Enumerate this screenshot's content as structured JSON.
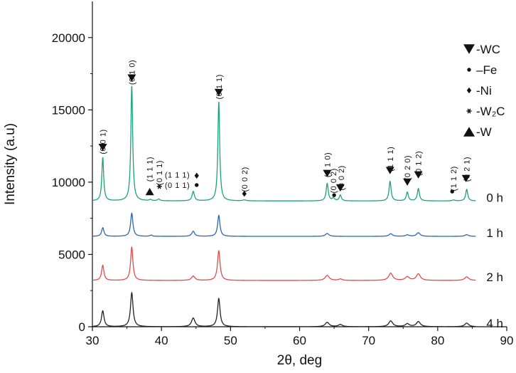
{
  "chart_data": {
    "type": "line",
    "xlabel": "2θ, deg",
    "ylabel": "Intensity (a.u)",
    "xlim": [
      30,
      90
    ],
    "ylim": [
      0,
      22500
    ],
    "x_ticks": [
      30,
      40,
      50,
      60,
      70,
      80,
      90
    ],
    "y_ticks": [
      0,
      5000,
      10000,
      15000,
      20000
    ],
    "grid": false,
    "legend": {
      "placement": "top-right",
      "entries": [
        {
          "marker": "down-triangle",
          "text": "-WC"
        },
        {
          "marker": "dot",
          "text": "–Fe"
        },
        {
          "marker": "diamond",
          "text": "-Ni"
        },
        {
          "marker": "asterisk",
          "text": "-W₂C"
        },
        {
          "marker": "up-triangle",
          "text": "-W"
        }
      ]
    },
    "series": [
      {
        "name": "0 h",
        "color": "#1aa37a",
        "baseline": 8700,
        "peaks": [
          {
            "x": 31.5,
            "height": 3000,
            "width": 0.16
          },
          {
            "x": 35.7,
            "height": 7950,
            "width": 0.16
          },
          {
            "x": 38.4,
            "height": 80,
            "width": 0.2
          },
          {
            "x": 39.6,
            "height": 120,
            "width": 0.2
          },
          {
            "x": 44.6,
            "height": 650,
            "width": 0.2
          },
          {
            "x": 48.3,
            "height": 6850,
            "width": 0.16
          },
          {
            "x": 52.0,
            "height": 60,
            "width": 0.3
          },
          {
            "x": 64.0,
            "height": 1200,
            "width": 0.18
          },
          {
            "x": 64.9,
            "height": 180,
            "width": 0.2
          },
          {
            "x": 65.9,
            "height": 400,
            "width": 0.18
          },
          {
            "x": 73.1,
            "height": 1350,
            "width": 0.18
          },
          {
            "x": 75.6,
            "height": 600,
            "width": 0.18
          },
          {
            "x": 77.2,
            "height": 850,
            "width": 0.18
          },
          {
            "x": 82.3,
            "height": 60,
            "width": 0.25
          },
          {
            "x": 84.2,
            "height": 800,
            "width": 0.18
          }
        ]
      },
      {
        "name": "1 h",
        "color": "#2a66b4",
        "baseline": 6250,
        "peaks": [
          {
            "x": 31.5,
            "height": 600,
            "width": 0.2
          },
          {
            "x": 35.7,
            "height": 1600,
            "width": 0.2
          },
          {
            "x": 38.5,
            "height": 80,
            "width": 0.2
          },
          {
            "x": 44.6,
            "height": 350,
            "width": 0.25
          },
          {
            "x": 48.3,
            "height": 1450,
            "width": 0.2
          },
          {
            "x": 64.0,
            "height": 200,
            "width": 0.3
          },
          {
            "x": 73.2,
            "height": 180,
            "width": 0.3
          },
          {
            "x": 75.6,
            "height": 100,
            "width": 0.3
          },
          {
            "x": 77.2,
            "height": 250,
            "width": 0.3
          },
          {
            "x": 84.2,
            "height": 120,
            "width": 0.3
          }
        ]
      },
      {
        "name": "2 h",
        "color": "#e14b4b",
        "baseline": 3200,
        "peaks": [
          {
            "x": 31.5,
            "height": 1050,
            "width": 0.2
          },
          {
            "x": 35.7,
            "height": 2300,
            "width": 0.2
          },
          {
            "x": 44.6,
            "height": 300,
            "width": 0.3
          },
          {
            "x": 48.3,
            "height": 2050,
            "width": 0.22
          },
          {
            "x": 64.0,
            "height": 350,
            "width": 0.35
          },
          {
            "x": 65.9,
            "height": 100,
            "width": 0.3
          },
          {
            "x": 73.2,
            "height": 500,
            "width": 0.35
          },
          {
            "x": 75.6,
            "height": 250,
            "width": 0.35
          },
          {
            "x": 77.2,
            "height": 450,
            "width": 0.35
          },
          {
            "x": 84.2,
            "height": 250,
            "width": 0.35
          }
        ]
      },
      {
        "name": "4 h",
        "color": "#222222",
        "baseline": 0,
        "peaks": [
          {
            "x": 31.5,
            "height": 1100,
            "width": 0.22
          },
          {
            "x": 35.7,
            "height": 2350,
            "width": 0.22
          },
          {
            "x": 44.6,
            "height": 600,
            "width": 0.3
          },
          {
            "x": 48.3,
            "height": 1950,
            "width": 0.22
          },
          {
            "x": 64.0,
            "height": 300,
            "width": 0.35
          },
          {
            "x": 65.9,
            "height": 150,
            "width": 0.35
          },
          {
            "x": 73.2,
            "height": 400,
            "width": 0.35
          },
          {
            "x": 75.6,
            "height": 200,
            "width": 0.35
          },
          {
            "x": 77.2,
            "height": 350,
            "width": 0.35
          },
          {
            "x": 84.2,
            "height": 250,
            "width": 0.35
          }
        ]
      }
    ],
    "annotations": [
      {
        "label": "(0 0 1)",
        "x": 31.5,
        "y": 12800,
        "marker": "down-triangle",
        "marker_x": 31.5,
        "marker_y": 12400
      },
      {
        "label": "(0 1 0)",
        "x": 35.7,
        "y": 17600,
        "marker": "down-triangle",
        "marker_x": 35.7,
        "marker_y": 17200
      },
      {
        "label": "(1 1 1)",
        "x": 38.3,
        "y": 10900,
        "marker": "up-triangle",
        "marker_x": 38.3,
        "marker_y": 9350
      },
      {
        "label": "(0 1 1)",
        "x": 39.7,
        "y": 10650,
        "marker": "asterisk",
        "marker_x": 39.7,
        "marker_y": 9700
      },
      {
        "label": "(1 1 1)",
        "x": 42.3,
        "y": 10500,
        "marker": "diamond",
        "marker_x": 45.1,
        "marker_y": 10450
      },
      {
        "label": "(0 1 1)",
        "x": 42.3,
        "y": 9800,
        "marker": "dot",
        "marker_x": 45.1,
        "marker_y": 9800
      },
      {
        "label": "(0 1 1)",
        "x": 48.3,
        "y": 16600,
        "marker": "down-triangle",
        "marker_x": 48.3,
        "marker_y": 16200
      },
      {
        "label": "(0 0 2)",
        "x": 52.0,
        "y": 10200,
        "marker": "diamond",
        "marker_x": 52.0,
        "marker_y": 9200
      },
      {
        "label": "(1 1 0)",
        "x": 64.0,
        "y": 11200,
        "marker": "down-triangle",
        "marker_x": 64.0,
        "marker_y": 10600
      },
      {
        "label": "(0 0 2)",
        "x": 64.9,
        "y": 10100,
        "marker": "dot",
        "marker_x": 65.0,
        "marker_y": 9100
      },
      {
        "label": "(0 0 2)",
        "x": 66.0,
        "y": 10300,
        "marker": "down-triangle",
        "marker_x": 65.9,
        "marker_y": 9600
      },
      {
        "label": "(1 1 1)",
        "x": 73.1,
        "y": 11600,
        "marker": "down-triangle",
        "marker_x": 73.1,
        "marker_y": 10800
      },
      {
        "label": "(0 2 0)",
        "x": 75.6,
        "y": 11000,
        "marker": "down-triangle",
        "marker_x": 75.6,
        "marker_y": 10000
      },
      {
        "label": "(0 1 2)",
        "x": 77.2,
        "y": 11300,
        "marker": "down-triangle",
        "marker_x": 77.2,
        "marker_y": 10500
      },
      {
        "label": "(1 1 2)",
        "x": 82.3,
        "y": 10250,
        "marker": "dot",
        "marker_x": 82.1,
        "marker_y": 9350
      },
      {
        "label": "(0 2 1)",
        "x": 84.2,
        "y": 10900,
        "marker": "down-triangle",
        "marker_x": 84.1,
        "marker_y": 10250
      }
    ]
  }
}
